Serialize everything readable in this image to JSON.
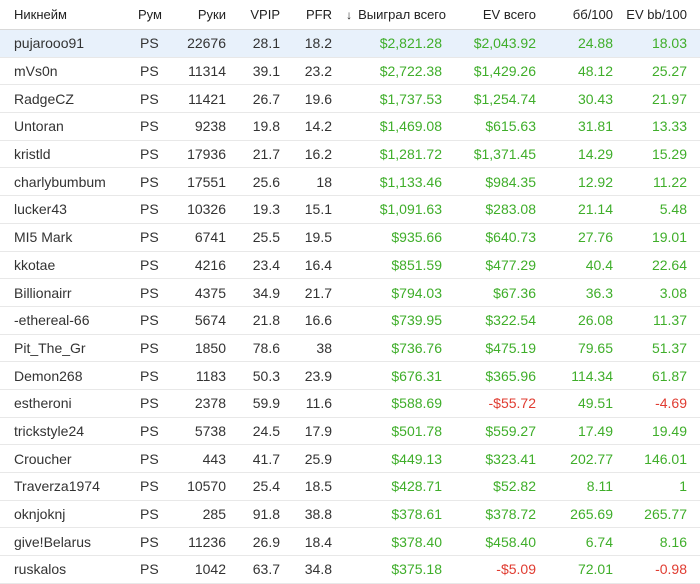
{
  "colors": {
    "positive": "#3fae2a",
    "negative": "#e03c31",
    "selected_row": "#e8f1fb"
  },
  "header": {
    "name": "Никнейм",
    "room": "Рум",
    "hands": "Руки",
    "vpip": "VPIP",
    "pfr": "PFR",
    "won_sort_icon": "arrow-down-icon",
    "won": "Выиграл всего",
    "ev": "EV всего",
    "bb": "бб/100",
    "evbb": "EV bb/100"
  },
  "rows": [
    {
      "name": "pujarooo91",
      "room": "PS",
      "hands": "22676",
      "vpip": "28.1",
      "pfr": "18.2",
      "won": "$2,821.28",
      "ev": "$2,043.92",
      "bb": "24.88",
      "evbb": "18.03"
    },
    {
      "name": "mVs0n",
      "room": "PS",
      "hands": "11314",
      "vpip": "39.1",
      "pfr": "23.2",
      "won": "$2,722.38",
      "ev": "$1,429.26",
      "bb": "48.12",
      "evbb": "25.27"
    },
    {
      "name": "RadgeCZ",
      "room": "PS",
      "hands": "11421",
      "vpip": "26.7",
      "pfr": "19.6",
      "won": "$1,737.53",
      "ev": "$1,254.74",
      "bb": "30.43",
      "evbb": "21.97"
    },
    {
      "name": "Untoran",
      "room": "PS",
      "hands": "9238",
      "vpip": "19.8",
      "pfr": "14.2",
      "won": "$1,469.08",
      "ev": "$615.63",
      "bb": "31.81",
      "evbb": "13.33"
    },
    {
      "name": "kristld",
      "room": "PS",
      "hands": "17936",
      "vpip": "21.7",
      "pfr": "16.2",
      "won": "$1,281.72",
      "ev": "$1,371.45",
      "bb": "14.29",
      "evbb": "15.29"
    },
    {
      "name": "charlybumbum",
      "room": "PS",
      "hands": "17551",
      "vpip": "25.6",
      "pfr": "18",
      "won": "$1,133.46",
      "ev": "$984.35",
      "bb": "12.92",
      "evbb": "11.22"
    },
    {
      "name": "lucker43",
      "room": "PS",
      "hands": "10326",
      "vpip": "19.3",
      "pfr": "15.1",
      "won": "$1,091.63",
      "ev": "$283.08",
      "bb": "21.14",
      "evbb": "5.48"
    },
    {
      "name": "MI5 Mark",
      "room": "PS",
      "hands": "6741",
      "vpip": "25.5",
      "pfr": "19.5",
      "won": "$935.66",
      "ev": "$640.73",
      "bb": "27.76",
      "evbb": "19.01"
    },
    {
      "name": "kkotae",
      "room": "PS",
      "hands": "4216",
      "vpip": "23.4",
      "pfr": "16.4",
      "won": "$851.59",
      "ev": "$477.29",
      "bb": "40.4",
      "evbb": "22.64"
    },
    {
      "name": "Billionairr",
      "room": "PS",
      "hands": "4375",
      "vpip": "34.9",
      "pfr": "21.7",
      "won": "$794.03",
      "ev": "$67.36",
      "bb": "36.3",
      "evbb": "3.08"
    },
    {
      "name": "-ethereal-66",
      "room": "PS",
      "hands": "5674",
      "vpip": "21.8",
      "pfr": "16.6",
      "won": "$739.95",
      "ev": "$322.54",
      "bb": "26.08",
      "evbb": "11.37"
    },
    {
      "name": "Pit_The_Gr",
      "room": "PS",
      "hands": "1850",
      "vpip": "78.6",
      "pfr": "38",
      "won": "$736.76",
      "ev": "$475.19",
      "bb": "79.65",
      "evbb": "51.37"
    },
    {
      "name": "Demon268",
      "room": "PS",
      "hands": "1183",
      "vpip": "50.3",
      "pfr": "23.9",
      "won": "$676.31",
      "ev": "$365.96",
      "bb": "114.34",
      "evbb": "61.87"
    },
    {
      "name": "estheroni",
      "room": "PS",
      "hands": "2378",
      "vpip": "59.9",
      "pfr": "11.6",
      "won": "$588.69",
      "ev": "-$55.72",
      "bb": "49.51",
      "evbb": "-4.69"
    },
    {
      "name": "trickstyle24",
      "room": "PS",
      "hands": "5738",
      "vpip": "24.5",
      "pfr": "17.9",
      "won": "$501.78",
      "ev": "$559.27",
      "bb": "17.49",
      "evbb": "19.49"
    },
    {
      "name": "Croucher",
      "room": "PS",
      "hands": "443",
      "vpip": "41.7",
      "pfr": "25.9",
      "won": "$449.13",
      "ev": "$323.41",
      "bb": "202.77",
      "evbb": "146.01"
    },
    {
      "name": "Traverza1974",
      "room": "PS",
      "hands": "10570",
      "vpip": "25.4",
      "pfr": "18.5",
      "won": "$428.71",
      "ev": "$52.82",
      "bb": "8.11",
      "evbb": "1"
    },
    {
      "name": "oknjoknj",
      "room": "PS",
      "hands": "285",
      "vpip": "91.8",
      "pfr": "38.8",
      "won": "$378.61",
      "ev": "$378.72",
      "bb": "265.69",
      "evbb": "265.77"
    },
    {
      "name": "give!Belarus",
      "room": "PS",
      "hands": "11236",
      "vpip": "26.9",
      "pfr": "18.4",
      "won": "$378.40",
      "ev": "$458.40",
      "bb": "6.74",
      "evbb": "8.16"
    },
    {
      "name": "ruskalos",
      "room": "PS",
      "hands": "1042",
      "vpip": "63.7",
      "pfr": "34.8",
      "won": "$375.18",
      "ev": "-$5.09",
      "bb": "72.01",
      "evbb": "-0.98"
    }
  ]
}
